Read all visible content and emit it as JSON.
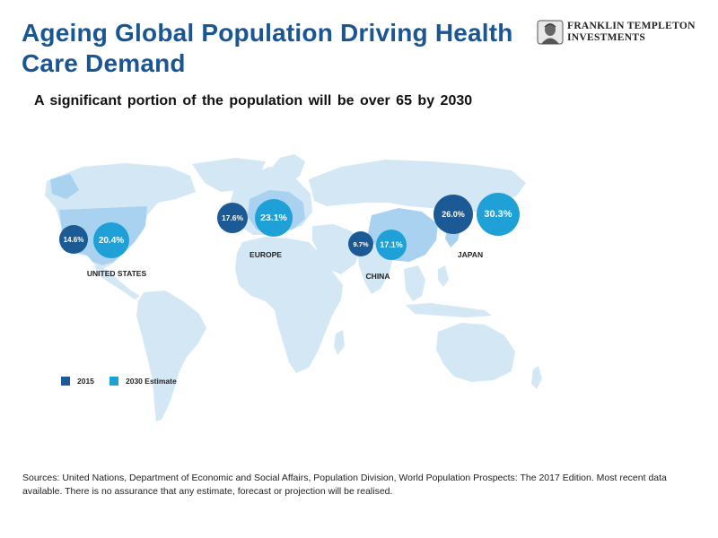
{
  "header": {
    "title": "Ageing Global Population Driving Health Care Demand",
    "subtitle": "A significant portion of the population will be over 65 by 2030"
  },
  "logo": {
    "line1": "FRANKLIN TEMPLETON",
    "line2": "INVESTMENTS"
  },
  "colors": {
    "title": "#1a5694",
    "year_2015": "#1c5a96",
    "year_2030": "#1fa0d6",
    "land": "#d3e7f5",
    "highlight": "#a8d2ef"
  },
  "regions": [
    {
      "label": "UNITED STATES",
      "value_2015": "14.6%",
      "value_2030": "20.4%"
    },
    {
      "label": "EUROPE",
      "value_2015": "17.6%",
      "value_2030": "23.1%"
    },
    {
      "label": "CHINA",
      "value_2015": "9.7%",
      "value_2030": "17.1%"
    },
    {
      "label": "JAPAN",
      "value_2015": "26.0%",
      "value_2030": "30.3%"
    }
  ],
  "legend": {
    "item_2015": "2015",
    "item_2030": "2030 Estimate"
  },
  "footer": {
    "sources": "Sources: United Nations, Department of Economic and Social Affairs, Population Division, World Population Prospects: The 2017 Edition. Most recent data available. There is no assurance that any estimate, forecast or projection will be realised."
  }
}
